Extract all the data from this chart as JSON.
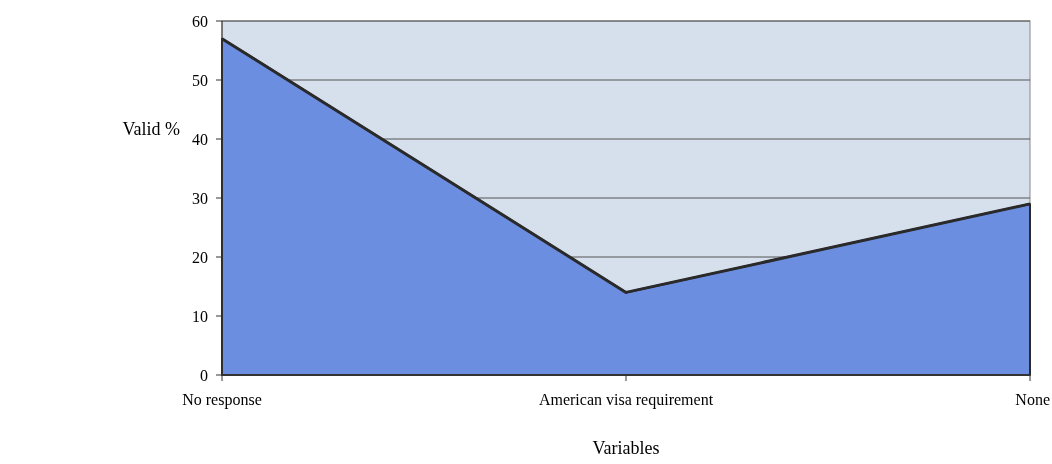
{
  "chart_data": {
    "type": "area",
    "xlabel": "Variables",
    "ylabel": "Valid %",
    "categories": [
      "No response",
      "American visa requirement",
      "None"
    ],
    "series": [
      {
        "color": "#6b8ee0",
        "values": [
          57,
          14,
          29
        ]
      }
    ],
    "ylim": [
      0,
      60
    ],
    "yticks": [
      0,
      10,
      20,
      30,
      40,
      50,
      60
    ],
    "grid": "y"
  }
}
